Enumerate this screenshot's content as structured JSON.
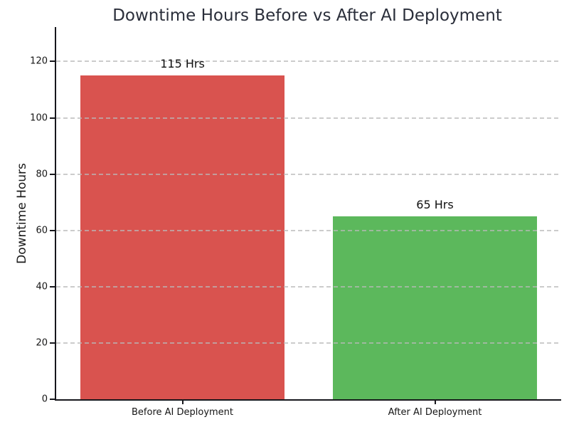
{
  "chart_data": {
    "type": "bar",
    "title": "Downtime Hours Before vs After AI Deployment",
    "ylabel": "Downtime Hours",
    "categories": [
      "Before AI Deployment",
      "After AI Deployment"
    ],
    "values": [
      115,
      65
    ],
    "bar_labels": [
      "115 Hrs",
      "65 Hrs"
    ],
    "bar_colors": [
      "#d9534f",
      "#5cb85c"
    ],
    "ylim": [
      0,
      132.25
    ],
    "yticks": [
      0,
      20,
      40,
      60,
      80,
      100,
      120
    ],
    "bar_width_fraction": 0.808,
    "grid": "horizontal-dashed",
    "grid_color": "#b9b9b9",
    "legend": "none",
    "background_color": "#ffffff"
  }
}
